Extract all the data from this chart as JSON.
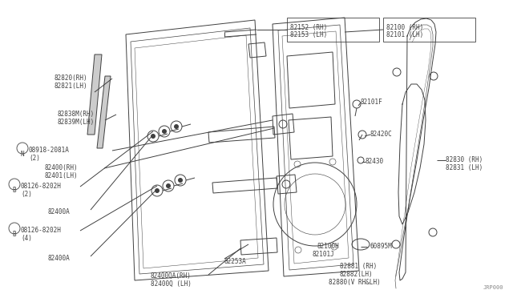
{
  "bg_color": "#ffffff",
  "line_color": "#404040",
  "text_color": "#404040",
  "fs": 5.5,
  "diagram_id": "JRP000",
  "label_boxes": [
    {
      "text": "82152 (RH)\n82153 (LH)",
      "bx": 0.538,
      "by": 0.845,
      "bw": 0.105,
      "bh": 0.05
    },
    {
      "text": "82100 (RH)\n82101 (LH)",
      "bx": 0.655,
      "by": 0.845,
      "bw": 0.105,
      "bh": 0.05
    }
  ]
}
